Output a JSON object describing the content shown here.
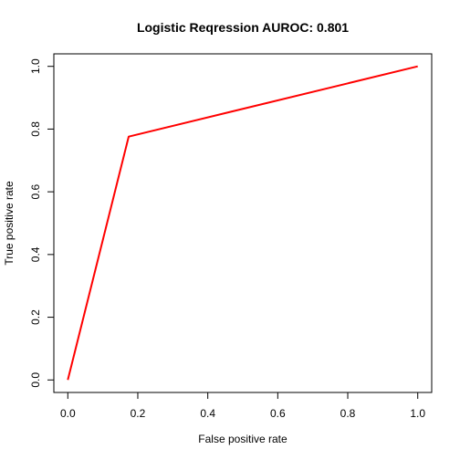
{
  "chart_data": {
    "type": "line",
    "title": "Logistic Reqression AUROC: 0.801",
    "xlabel": "False positive rate",
    "ylabel": "True positive rate",
    "xlim": [
      0,
      1
    ],
    "ylim": [
      0,
      1
    ],
    "x_ticks": [
      "0.0",
      "0.2",
      "0.4",
      "0.6",
      "0.8",
      "1.0"
    ],
    "y_ticks": [
      "0.0",
      "0.2",
      "0.4",
      "0.6",
      "0.8",
      "1.0"
    ],
    "grid": false,
    "series": [
      {
        "color": "#ff0000",
        "points": [
          {
            "x": 0.0,
            "y": 0.0
          },
          {
            "x": 0.174,
            "y": 0.776
          },
          {
            "x": 1.0,
            "y": 1.0
          }
        ]
      }
    ]
  }
}
